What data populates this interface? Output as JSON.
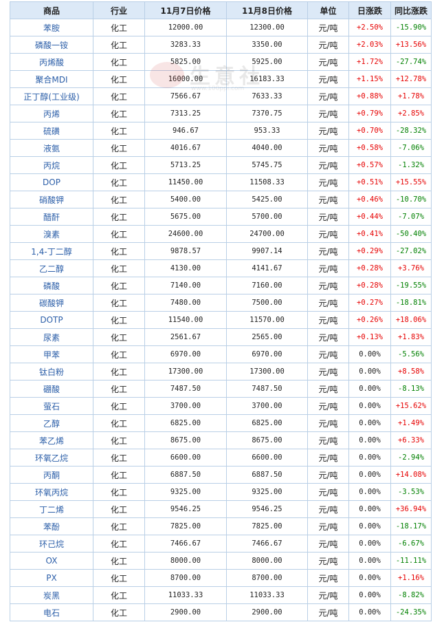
{
  "headers": {
    "name": "商品",
    "industry": "行业",
    "price_a": "11月7日价格",
    "price_b": "11月8日价格",
    "unit": "单位",
    "daily": "日涨跌",
    "yoy": "同比涨跌"
  },
  "watermark": {
    "text": "生意社",
    "url": "www.100ppi.com"
  },
  "colors": {
    "up": "#e60000",
    "down": "#008000",
    "header_bg": "#dce9f7",
    "border": "#b9cfe6",
    "name_link": "#2b5ea8"
  },
  "rows": [
    {
      "name": "苯胺",
      "industry": "化工",
      "price_a": "12000.00",
      "price_b": "12300.00",
      "unit": "元/吨",
      "daily": "+2.50%",
      "yoy": "-15.90%"
    },
    {
      "name": "磷酸一铵",
      "industry": "化工",
      "price_a": "3283.33",
      "price_b": "3350.00",
      "unit": "元/吨",
      "daily": "+2.03%",
      "yoy": "+13.56%"
    },
    {
      "name": "丙烯酸",
      "industry": "化工",
      "price_a": "5825.00",
      "price_b": "5925.00",
      "unit": "元/吨",
      "daily": "+1.72%",
      "yoy": "-27.74%"
    },
    {
      "name": "聚合MDI",
      "industry": "化工",
      "price_a": "16000.00",
      "price_b": "16183.33",
      "unit": "元/吨",
      "daily": "+1.15%",
      "yoy": "+12.78%"
    },
    {
      "name": "正丁醇(工业级)",
      "industry": "化工",
      "price_a": "7566.67",
      "price_b": "7633.33",
      "unit": "元/吨",
      "daily": "+0.88%",
      "yoy": "+1.78%"
    },
    {
      "name": "丙烯",
      "industry": "化工",
      "price_a": "7313.25",
      "price_b": "7370.75",
      "unit": "元/吨",
      "daily": "+0.79%",
      "yoy": "+2.85%"
    },
    {
      "name": "硫磺",
      "industry": "化工",
      "price_a": "946.67",
      "price_b": "953.33",
      "unit": "元/吨",
      "daily": "+0.70%",
      "yoy": "-28.32%"
    },
    {
      "name": "液氨",
      "industry": "化工",
      "price_a": "4016.67",
      "price_b": "4040.00",
      "unit": "元/吨",
      "daily": "+0.58%",
      "yoy": "-7.06%"
    },
    {
      "name": "丙烷",
      "industry": "化工",
      "price_a": "5713.25",
      "price_b": "5745.75",
      "unit": "元/吨",
      "daily": "+0.57%",
      "yoy": "-1.32%"
    },
    {
      "name": "DOP",
      "industry": "化工",
      "price_a": "11450.00",
      "price_b": "11508.33",
      "unit": "元/吨",
      "daily": "+0.51%",
      "yoy": "+15.55%"
    },
    {
      "name": "硝酸钾",
      "industry": "化工",
      "price_a": "5400.00",
      "price_b": "5425.00",
      "unit": "元/吨",
      "daily": "+0.46%",
      "yoy": "-10.70%"
    },
    {
      "name": "醋酐",
      "industry": "化工",
      "price_a": "5675.00",
      "price_b": "5700.00",
      "unit": "元/吨",
      "daily": "+0.44%",
      "yoy": "-7.07%"
    },
    {
      "name": "溴素",
      "industry": "化工",
      "price_a": "24600.00",
      "price_b": "24700.00",
      "unit": "元/吨",
      "daily": "+0.41%",
      "yoy": "-50.40%"
    },
    {
      "name": "1,4-丁二醇",
      "industry": "化工",
      "price_a": "9878.57",
      "price_b": "9907.14",
      "unit": "元/吨",
      "daily": "+0.29%",
      "yoy": "-27.02%"
    },
    {
      "name": "乙二醇",
      "industry": "化工",
      "price_a": "4130.00",
      "price_b": "4141.67",
      "unit": "元/吨",
      "daily": "+0.28%",
      "yoy": "+3.76%"
    },
    {
      "name": "磷酸",
      "industry": "化工",
      "price_a": "7140.00",
      "price_b": "7160.00",
      "unit": "元/吨",
      "daily": "+0.28%",
      "yoy": "-19.55%"
    },
    {
      "name": "碳酸钾",
      "industry": "化工",
      "price_a": "7480.00",
      "price_b": "7500.00",
      "unit": "元/吨",
      "daily": "+0.27%",
      "yoy": "-18.81%"
    },
    {
      "name": "DOTP",
      "industry": "化工",
      "price_a": "11540.00",
      "price_b": "11570.00",
      "unit": "元/吨",
      "daily": "+0.26%",
      "yoy": "+18.06%"
    },
    {
      "name": "尿素",
      "industry": "化工",
      "price_a": "2561.67",
      "price_b": "2565.00",
      "unit": "元/吨",
      "daily": "+0.13%",
      "yoy": "+1.83%"
    },
    {
      "name": "甲苯",
      "industry": "化工",
      "price_a": "6970.00",
      "price_b": "6970.00",
      "unit": "元/吨",
      "daily": "0.00%",
      "yoy": "-5.56%"
    },
    {
      "name": "钛白粉",
      "industry": "化工",
      "price_a": "17300.00",
      "price_b": "17300.00",
      "unit": "元/吨",
      "daily": "0.00%",
      "yoy": "+8.58%"
    },
    {
      "name": "硼酸",
      "industry": "化工",
      "price_a": "7487.50",
      "price_b": "7487.50",
      "unit": "元/吨",
      "daily": "0.00%",
      "yoy": "-8.13%"
    },
    {
      "name": "萤石",
      "industry": "化工",
      "price_a": "3700.00",
      "price_b": "3700.00",
      "unit": "元/吨",
      "daily": "0.00%",
      "yoy": "+15.62%"
    },
    {
      "name": "乙醇",
      "industry": "化工",
      "price_a": "6825.00",
      "price_b": "6825.00",
      "unit": "元/吨",
      "daily": "0.00%",
      "yoy": "+1.49%"
    },
    {
      "name": "苯乙烯",
      "industry": "化工",
      "price_a": "8675.00",
      "price_b": "8675.00",
      "unit": "元/吨",
      "daily": "0.00%",
      "yoy": "+6.33%"
    },
    {
      "name": "环氧乙烷",
      "industry": "化工",
      "price_a": "6600.00",
      "price_b": "6600.00",
      "unit": "元/吨",
      "daily": "0.00%",
      "yoy": "-2.94%"
    },
    {
      "name": "丙酮",
      "industry": "化工",
      "price_a": "6887.50",
      "price_b": "6887.50",
      "unit": "元/吨",
      "daily": "0.00%",
      "yoy": "+14.08%"
    },
    {
      "name": "环氧丙烷",
      "industry": "化工",
      "price_a": "9325.00",
      "price_b": "9325.00",
      "unit": "元/吨",
      "daily": "0.00%",
      "yoy": "-3.53%"
    },
    {
      "name": "丁二烯",
      "industry": "化工",
      "price_a": "9546.25",
      "price_b": "9546.25",
      "unit": "元/吨",
      "daily": "0.00%",
      "yoy": "+36.94%"
    },
    {
      "name": "苯酚",
      "industry": "化工",
      "price_a": "7825.00",
      "price_b": "7825.00",
      "unit": "元/吨",
      "daily": "0.00%",
      "yoy": "-18.17%"
    },
    {
      "name": "环己烷",
      "industry": "化工",
      "price_a": "7466.67",
      "price_b": "7466.67",
      "unit": "元/吨",
      "daily": "0.00%",
      "yoy": "-6.67%"
    },
    {
      "name": "OX",
      "industry": "化工",
      "price_a": "8000.00",
      "price_b": "8000.00",
      "unit": "元/吨",
      "daily": "0.00%",
      "yoy": "-11.11%"
    },
    {
      "name": "PX",
      "industry": "化工",
      "price_a": "8700.00",
      "price_b": "8700.00",
      "unit": "元/吨",
      "daily": "0.00%",
      "yoy": "+1.16%"
    },
    {
      "name": "炭黑",
      "industry": "化工",
      "price_a": "11033.33",
      "price_b": "11033.33",
      "unit": "元/吨",
      "daily": "0.00%",
      "yoy": "-8.82%"
    },
    {
      "name": "电石",
      "industry": "化工",
      "price_a": "2900.00",
      "price_b": "2900.00",
      "unit": "元/吨",
      "daily": "0.00%",
      "yoy": "-24.35%"
    }
  ]
}
